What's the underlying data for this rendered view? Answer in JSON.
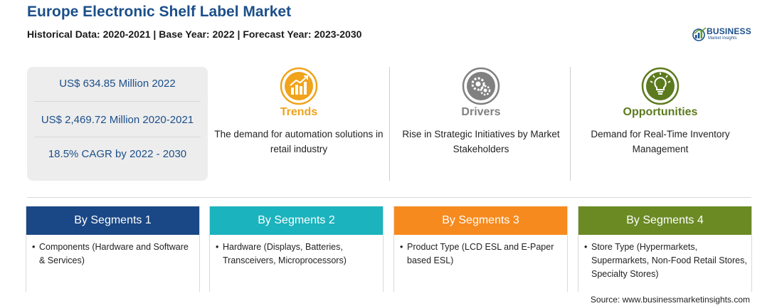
{
  "header": {
    "title": "Europe Electronic Shelf Label Market",
    "subtitle": "Historical Data: 2020-2021 | Base Year: 2022 | Forecast Year: 2023-2030"
  },
  "logo": {
    "word": "BUSINESS",
    "sub": "Market Insights",
    "color": "#1c4f8a"
  },
  "stats": [
    "US$ 634.85 Million 2022",
    "US$ 2,469.72 Million 2020-2021",
    "18.5% CAGR by 2022 - 2030"
  ],
  "columns": [
    {
      "heading": "Trends",
      "description": "The demand for automation solutions in retail industry",
      "color": "#f0a31b",
      "icon": "chart-trend-icon"
    },
    {
      "heading": "Drivers",
      "description": "Rise in Strategic Initiatives by Market Stakeholders",
      "color": "#808080",
      "icon": "gears-icon"
    },
    {
      "heading": "Opportunities",
      "description": "Demand for Real-Time Inventory Management",
      "color": "#5c7a1e",
      "icon": "lightbulb-icon"
    }
  ],
  "segments": [
    {
      "title": "By Segments 1",
      "bullet": "•",
      "item": "Components (Hardware and Software & Services)",
      "color": "#1a4785"
    },
    {
      "title": "By Segments 2",
      "bullet": "•",
      "item": "Hardware (Displays, Batteries, Transceivers, Microprocessors)",
      "color": "#1bb3bd"
    },
    {
      "title": "By Segments 3",
      "bullet": "•",
      "item": "Product Type (LCD ESL and E-Paper based ESL)",
      "color": "#f68a1e"
    },
    {
      "title": "By Segments 4",
      "bullet": "•",
      "item": "Store Type (Hypermarkets, Supermarkets, Non-Food Retail Stores, Specialty Stores)",
      "color": "#6b8a24"
    }
  ],
  "footer": {
    "source": "Source: www.businessmarketinsights.com"
  }
}
